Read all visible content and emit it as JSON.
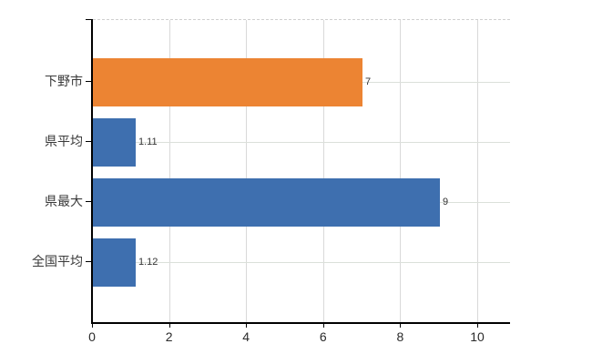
{
  "chart_data": {
    "type": "bar",
    "orientation": "horizontal",
    "title": "",
    "xlabel": "",
    "ylabel": "",
    "categories": [
      "下野市",
      "県平均",
      "県最大",
      "全国平均"
    ],
    "values": [
      7,
      1.11,
      9,
      1.12
    ],
    "value_labels": [
      "7",
      "1.11",
      "9",
      "1.12"
    ],
    "bar_colors": [
      "#EC8433",
      "#3E6FAF",
      "#3E6FAF",
      "#3E6FAF"
    ],
    "x_ticks": [
      "0",
      "2",
      "4",
      "6",
      "8",
      "10"
    ],
    "x_tick_values": [
      0,
      2,
      4,
      6,
      8,
      10
    ],
    "xlim": [
      0,
      10.8
    ],
    "legend": null,
    "grid": true,
    "gridline_color": "#d9d9d9",
    "axis_color": "#000000",
    "text_color": "#3a3a3a",
    "background_color": "#ffffff"
  }
}
